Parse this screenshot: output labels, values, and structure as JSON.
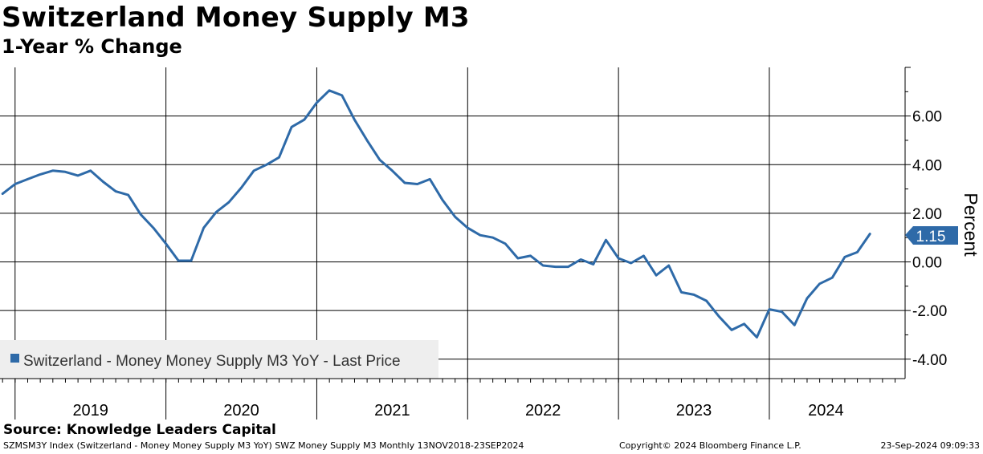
{
  "header": {
    "title": "Switzerland Money Supply M3",
    "subtitle": "1-Year % Change"
  },
  "footer": {
    "source": "Source: Knowledge Leaders Capital",
    "index_info": "SZMSM3Y Index (Switzerland - Money Money Supply M3 YoY) SWZ Money Supply M3  Monthly 13NOV2018-23SEP2024",
    "copyright": "Copyright© 2024 Bloomberg Finance L.P.",
    "timestamp": "23-Sep-2024 09:09:33"
  },
  "colors": {
    "series": "#2e6aa8",
    "legend_bg": "#eeeeee",
    "grid": "#000000"
  },
  "chart_data": {
    "type": "line",
    "title": "Switzerland Money Supply M3",
    "subtitle": "1-Year % Change",
    "ylabel": "Percent",
    "xlabel": "",
    "ylim": [
      -4.5,
      8
    ],
    "yticks": [
      6,
      4,
      2,
      0,
      -2,
      -4
    ],
    "ytick_labels": [
      "6.00",
      "4.00",
      "2.00",
      "0.00",
      "-2.00",
      "-4.00"
    ],
    "x_years": [
      "2019",
      "2020",
      "2021",
      "2022",
      "2023",
      "2024"
    ],
    "xlim": [
      2018.92,
      2024.92
    ],
    "legend": "Switzerland - Money Money Supply M3 YoY - Last Price",
    "legend_position": "bottom-left",
    "last_value_label": "1.15",
    "series": [
      {
        "name": "Switzerland - Money Money Supply M3 YoY - Last Price",
        "x": [
          2018.917,
          2019.0,
          2019.083,
          2019.167,
          2019.25,
          2019.333,
          2019.417,
          2019.5,
          2019.583,
          2019.667,
          2019.75,
          2019.833,
          2019.917,
          2020.0,
          2020.083,
          2020.167,
          2020.25,
          2020.333,
          2020.417,
          2020.5,
          2020.583,
          2020.667,
          2020.75,
          2020.833,
          2020.917,
          2021.0,
          2021.083,
          2021.167,
          2021.25,
          2021.333,
          2021.417,
          2021.5,
          2021.583,
          2021.667,
          2021.75,
          2021.833,
          2021.917,
          2022.0,
          2022.083,
          2022.167,
          2022.25,
          2022.333,
          2022.417,
          2022.5,
          2022.583,
          2022.667,
          2022.75,
          2022.833,
          2022.917,
          2023.0,
          2023.083,
          2023.167,
          2023.25,
          2023.333,
          2023.417,
          2023.5,
          2023.583,
          2023.667,
          2023.75,
          2023.833,
          2023.917,
          2024.0,
          2024.083,
          2024.167,
          2024.25,
          2024.333,
          2024.417,
          2024.5,
          2024.583,
          2024.667
        ],
        "values": [
          2.8,
          3.2,
          3.4,
          3.6,
          3.75,
          3.7,
          3.55,
          3.75,
          3.3,
          2.9,
          2.75,
          1.95,
          1.4,
          0.75,
          0.05,
          0.05,
          1.4,
          2.05,
          2.45,
          3.05,
          3.75,
          4.0,
          4.3,
          5.55,
          5.85,
          6.55,
          7.05,
          6.85,
          5.85,
          5.0,
          4.2,
          3.75,
          3.25,
          3.2,
          3.4,
          2.55,
          1.85,
          1.4,
          1.1,
          1.0,
          0.75,
          0.15,
          0.25,
          -0.15,
          -0.2,
          -0.2,
          0.1,
          -0.1,
          0.9,
          0.15,
          -0.05,
          0.25,
          -0.55,
          -0.15,
          -1.25,
          -1.35,
          -1.6,
          -2.25,
          -2.8,
          -2.55,
          -3.1,
          -1.95,
          -2.05,
          -2.6,
          -1.5,
          -0.9,
          -0.65,
          0.2,
          0.4,
          1.15
        ]
      }
    ]
  }
}
